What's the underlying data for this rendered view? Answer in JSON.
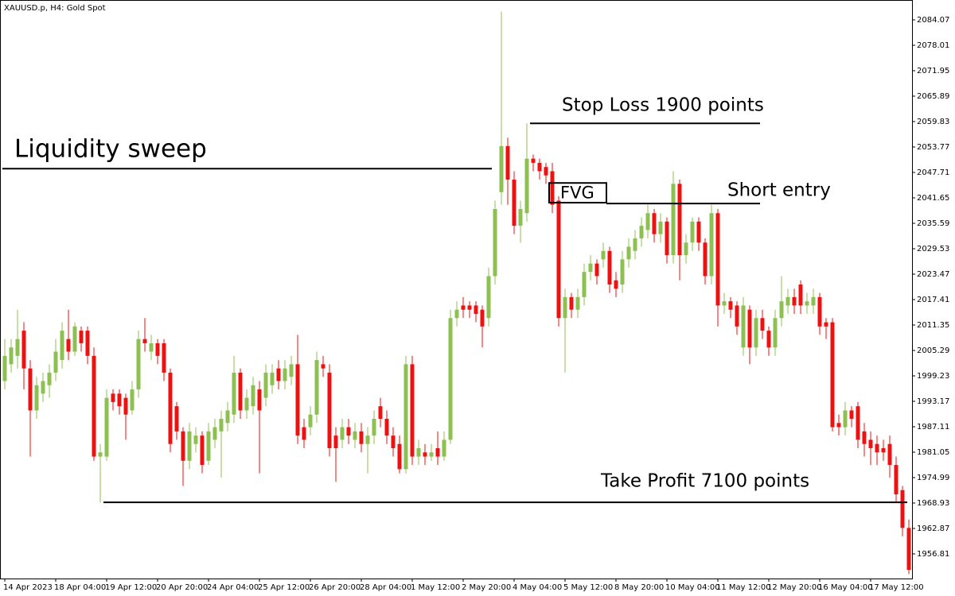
{
  "chart_data": {
    "type": "candlestick",
    "title": "XAUUSD.p, H4:  Gold Spot",
    "categories": [
      "14 Apr 2023",
      null,
      null,
      null,
      null,
      null,
      null,
      null,
      "18 Apr 04:00",
      null,
      null,
      null,
      null,
      null,
      null,
      null,
      "19 Apr 12:00",
      null,
      null,
      null,
      null,
      null,
      null,
      null,
      "20 Apr 20:00",
      null,
      null,
      null,
      null,
      null,
      null,
      null,
      "24 Apr 04:00",
      null,
      null,
      null,
      null,
      null,
      null,
      null,
      "25 Apr 12:00",
      null,
      null,
      null,
      null,
      null,
      null,
      null,
      "26 Apr 20:00",
      null,
      null,
      null,
      null,
      null,
      null,
      null,
      "28 Apr 04:00",
      null,
      null,
      null,
      null,
      null,
      null,
      null,
      "1 May 12:00",
      null,
      null,
      null,
      null,
      null,
      null,
      null,
      "2 May 20:00",
      null,
      null,
      null,
      null,
      null,
      null,
      null,
      "4 May 04:00",
      null,
      null,
      null,
      null,
      null,
      null,
      null,
      "5 May 12:00",
      null,
      null,
      null,
      null,
      null,
      null,
      null,
      "8 May 20:00",
      null,
      null,
      null,
      null,
      null,
      null,
      null,
      "10 May 04:00",
      null,
      null,
      null,
      null,
      null,
      null,
      null,
      "11 May 12:00",
      null,
      null,
      null,
      null,
      null,
      null,
      null,
      "12 May 20:00",
      null,
      null,
      null,
      null,
      null,
      null,
      null,
      "16 May 04:00",
      null,
      null,
      null,
      null,
      null,
      null,
      null,
      "17 May 12:00",
      null,
      null,
      null,
      null,
      null,
      null
    ],
    "open": [
      1998,
      2002,
      2004,
      2010,
      2001,
      1991,
      1995,
      1997,
      2000,
      2003,
      2008,
      2005,
      2010,
      2010,
      2004,
      1980,
      1980,
      1995,
      1995,
      1994,
      1991,
      1996,
      2008,
      2005,
      2007,
      2007,
      2000,
      1992,
      1986,
      1979,
      1983,
      1985,
      1979,
      1984,
      1986,
      1988,
      1990,
      2000,
      1991,
      1992,
      1996,
      1994,
      1997,
      2001,
      1998,
      1999,
      2002,
      1987,
      1987,
      1990,
      2002,
      2000,
      1985,
      1984,
      1987,
      1984,
      1986,
      1983,
      1985,
      1992,
      1989,
      1985,
      1983,
      1977,
      2002,
      1980,
      1981,
      1980,
      1982,
      1980,
      1984,
      2013,
      2016,
      2016,
      2016,
      2015,
      2013,
      2023,
      2043,
      2054,
      2046,
      2035,
      2038,
      2051,
      2050,
      2049,
      2048,
      2041,
      2013,
      2018,
      2015,
      2018,
      2024,
      2026,
      2027,
      2029,
      2022,
      2021,
      2027,
      2029,
      2032,
      2034,
      2038,
      2033,
      2036,
      2028,
      2045,
      2028,
      2031,
      2036,
      2031,
      2023,
      2038,
      2016,
      2017,
      2016,
      2006,
      2015,
      2006,
      2013,
      2010,
      2006,
      2013,
      2016,
      2018,
      2021,
      2016,
      2016,
      2018,
      2012,
      2012,
      1988,
      1987,
      1991,
      1992,
      1986,
      1984,
      1983,
      1982,
      1983,
      1978,
      1972,
      1963
    ],
    "high": [
      2008,
      2008,
      2015,
      2012,
      2003,
      1999,
      2000,
      2002,
      2008,
      2012,
      2015,
      2012,
      2011,
      2011,
      2006,
      1983,
      1996,
      1996,
      1996,
      1995,
      1998,
      2010,
      2013,
      2009,
      2008,
      2008,
      2001,
      1993,
      1987,
      1988,
      1987,
      1986,
      1988,
      1989,
      1991,
      1993,
      2004,
      2001,
      1996,
      1999,
      1998,
      2002,
      2002,
      2003,
      2003,
      2004,
      2009,
      1989,
      1992,
      2005,
      2004,
      2002,
      1987,
      1989,
      1989,
      1988,
      1988,
      1987,
      1991,
      1994,
      1991,
      1987,
      1985,
      2004,
      2004,
      1984,
      1983,
      1983,
      1986,
      1986,
      2015,
      2017,
      2018,
      2017,
      2017,
      2016,
      2025,
      2041,
      2086,
      2056,
      2048,
      2041,
      2059.4,
      2052,
      2051,
      2050,
      2050,
      2042,
      2020,
      2019,
      2020,
      2026,
      2028,
      2027,
      2031,
      2030,
      2024,
      2029,
      2032,
      2034,
      2037,
      2040,
      2039,
      2038,
      2037,
      2048,
      2046,
      2033,
      2037,
      2037,
      2032,
      2040,
      2039,
      2019,
      2018,
      2017,
      2018,
      2016,
      2015,
      2015,
      2011,
      2015,
      2023,
      2020,
      2020,
      2022,
      2019,
      2020,
      2019,
      2013,
      2013,
      1990,
      1993,
      1992,
      1993,
      1988,
      1986,
      1985,
      1984,
      1985,
      1980,
      1973,
      1965
    ],
    "low": [
      1996,
      2000,
      2001,
      1996,
      1980,
      1989,
      1993,
      1994,
      1998,
      2001,
      2003,
      2004,
      2005,
      2002,
      1979,
      1969,
      1979,
      1991,
      1990,
      1984,
      1990,
      1994,
      2005,
      2003,
      2002,
      1998,
      1981,
      1984,
      1973,
      1977,
      1981,
      1976,
      1978,
      1982,
      1975,
      1986,
      1988,
      1989,
      1989,
      1990,
      1976,
      1992,
      1995,
      1996,
      1996,
      1997,
      1983,
      1982,
      1985,
      1988,
      1999,
      1980,
      1974,
      1982,
      1983,
      1982,
      1981,
      1976,
      1983,
      1987,
      1983,
      1980,
      1976,
      1976,
      1978,
      1978,
      1978,
      1979,
      1978,
      1979,
      1983,
      2011,
      2013,
      2013,
      2012,
      2006,
      2011,
      2021,
      2040,
      2040,
      2033,
      2031,
      2036,
      2048,
      2046,
      2045,
      2038,
      2011,
      2000,
      2013,
      2013,
      2016,
      2022,
      2021,
      2025,
      2019,
      2018,
      2019,
      2025,
      2027,
      2030,
      2032,
      2031,
      2031,
      2026,
      2026,
      2022,
      2026,
      2029,
      2029,
      2021,
      2021,
      2011,
      2014,
      2013,
      2009,
      2004,
      2002,
      2004,
      2008,
      2004,
      2004,
      2011,
      2014,
      2014,
      2014,
      2014,
      2014,
      2009,
      2008,
      1986,
      1985,
      1985,
      1987,
      1982,
      1980,
      1978,
      1978,
      1979,
      1975,
      1969,
      1961,
      1952
    ],
    "close": [
      2004,
      2006,
      2008,
      2001,
      1991,
      1997,
      1998,
      2000,
      2005,
      2010,
      2005,
      2011,
      2007,
      2004,
      1980,
      1981,
      1994,
      1993,
      1992,
      1990,
      1996,
      2008,
      2007,
      2007,
      2004,
      2000,
      1983,
      1986,
      1979,
      1986,
      1985,
      1978,
      1986,
      1987,
      1989,
      1991,
      2000,
      1991,
      1994,
      1997,
      1991,
      2000,
      2000,
      1998,
      2001,
      2002,
      1985,
      1984,
      1990,
      2003,
      2001,
      1982,
      1982,
      1987,
      1985,
      1986,
      1983,
      1985,
      1989,
      1989,
      1985,
      1982,
      1977,
      2002,
      1980,
      1982,
      1980,
      1981,
      1980,
      1984,
      2013,
      2015,
      2015,
      2015,
      2014,
      2011,
      2023,
      2039,
      2054,
      2046,
      2035,
      2039,
      2051,
      2050,
      2048,
      2047,
      2040,
      2013,
      2018,
      2015,
      2018,
      2024,
      2026,
      2023,
      2029,
      2021,
      2020,
      2027,
      2030,
      2032,
      2035,
      2038,
      2033,
      2036,
      2028,
      2045,
      2028,
      2031,
      2036,
      2031,
      2023,
      2038,
      2016,
      2017,
      2015,
      2011,
      2016,
      2006,
      2013,
      2010,
      2006,
      2013,
      2017,
      2018,
      2016,
      2016,
      2017,
      2018,
      2011,
      2011,
      1987,
      1987,
      1991,
      1989,
      1984,
      1983,
      1982,
      1981,
      1981,
      1978,
      1971,
      1963,
      1953
    ],
    "up_color": "#8cc152",
    "down_color": "#ee1111",
    "ylim": [
      1950.94,
      2088.8
    ],
    "yticks": [
      2084.07,
      2078.01,
      2071.95,
      2065.89,
      2059.83,
      2053.77,
      2047.71,
      2041.65,
      2035.59,
      2029.53,
      2023.47,
      2017.41,
      2011.35,
      2005.29,
      1999.23,
      1993.17,
      1987.11,
      1981.05,
      1974.99,
      1968.93,
      1962.87,
      1956.81
    ],
    "annotations": [
      {
        "text": "Liquidity sweep",
        "price": 2048.6
      },
      {
        "text": "Stop Loss 1900 points",
        "price": 2059.4
      },
      {
        "text": "Short entry",
        "price": 2040.3
      },
      {
        "text": "Take Profit 7100 points",
        "price": 1969.1
      }
    ],
    "fvg": {
      "label": "FVG",
      "top": 2045.2,
      "bottom": 2040.5
    }
  }
}
